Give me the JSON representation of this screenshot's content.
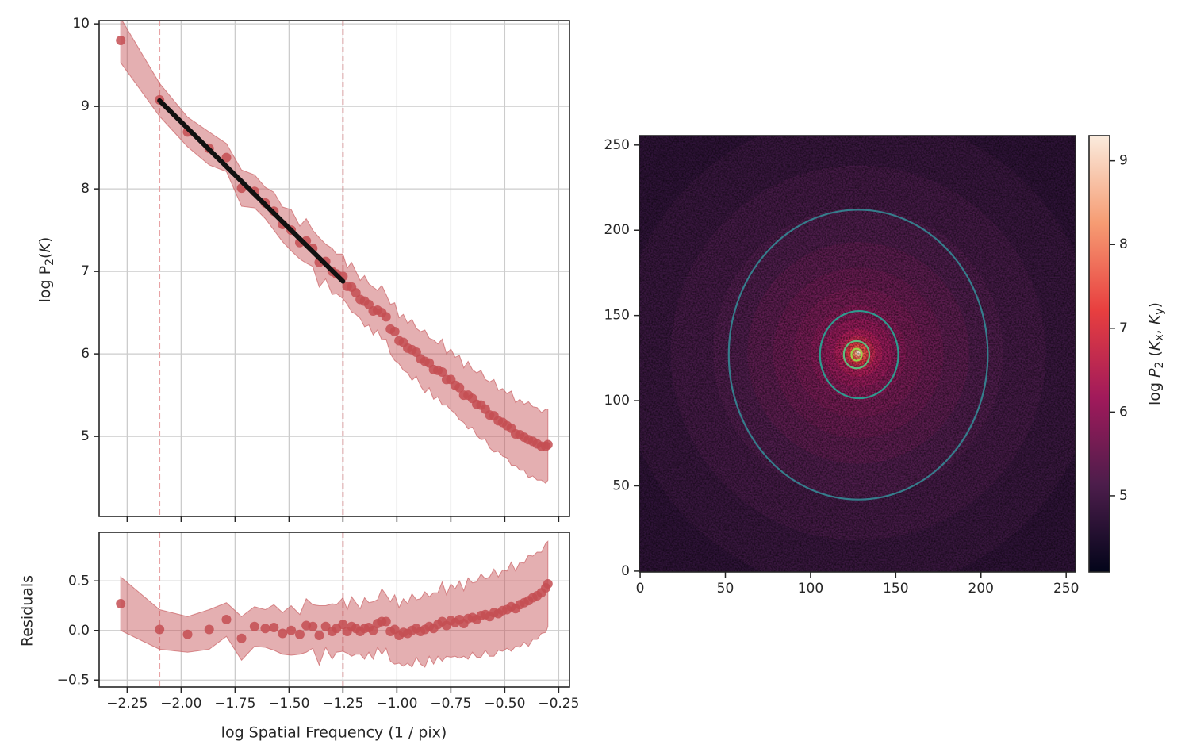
{
  "chart_data": [
    {
      "type": "scatter",
      "ylabel": [
        "log P",
        "2",
        "(",
        "K",
        ")"
      ],
      "xlim": [
        -2.38,
        -0.2
      ],
      "ylim": [
        4.03,
        10.04
      ],
      "xticks": [
        -2.25,
        -2,
        -1.75,
        -1.5,
        -1.25,
        -1,
        -0.75,
        -0.5,
        -0.25
      ],
      "show_xtick_labels": false,
      "yticks": [
        5,
        6,
        7,
        8,
        9,
        10
      ],
      "grid": true,
      "vlines": [
        {
          "x": -2.1,
          "color": "#e8a3a5"
        },
        {
          "x": -1.25,
          "color": "#cf8a8c"
        }
      ],
      "series": [
        {
          "color": "#c44e52",
          "x": [
            -2.28,
            -2.1,
            -1.97,
            -1.87,
            -1.79,
            -1.72,
            -1.66,
            -1.61,
            -1.57,
            -1.53,
            -1.49,
            -1.45,
            -1.42,
            -1.39,
            -1.36,
            -1.33,
            -1.3,
            -1.28,
            -1.25,
            -1.23,
            -1.21,
            -1.19,
            -1.17,
            -1.15,
            -1.13,
            -1.11,
            -1.09,
            -1.07,
            -1.05,
            -1.03,
            -1.01,
            -0.99,
            -0.97,
            -0.95,
            -0.93,
            -0.91,
            -0.89,
            -0.87,
            -0.85,
            -0.83,
            -0.81,
            -0.79,
            -0.77,
            -0.75,
            -0.73,
            -0.71,
            -0.69,
            -0.67,
            -0.65,
            -0.63,
            -0.61,
            -0.59,
            -0.57,
            -0.55,
            -0.53,
            -0.51,
            -0.49,
            -0.47,
            -0.45,
            -0.43,
            -0.41,
            -0.39,
            -0.37,
            -0.35,
            -0.33,
            -0.31,
            -0.3
          ],
          "values": [
            9.8,
            9.08,
            8.69,
            8.49,
            8.38,
            8.01,
            7.97,
            7.83,
            7.73,
            7.57,
            7.5,
            7.35,
            7.37,
            7.28,
            7.11,
            7.12,
            7.0,
            6.97,
            6.94,
            6.82,
            6.81,
            6.74,
            6.66,
            6.64,
            6.6,
            6.52,
            6.53,
            6.5,
            6.45,
            6.3,
            6.27,
            6.16,
            6.14,
            6.07,
            6.05,
            6.02,
            5.94,
            5.91,
            5.89,
            5.81,
            5.8,
            5.78,
            5.69,
            5.69,
            5.62,
            5.59,
            5.5,
            5.5,
            5.46,
            5.39,
            5.38,
            5.33,
            5.26,
            5.25,
            5.19,
            5.17,
            5.13,
            5.1,
            5.03,
            5.02,
            4.99,
            4.96,
            4.94,
            4.91,
            4.88,
            4.88,
            4.9
          ],
          "errors": [
            0.27,
            0.2,
            0.18,
            0.2,
            0.17,
            0.22,
            0.2,
            0.19,
            0.23,
            0.21,
            0.25,
            0.2,
            0.27,
            0.22,
            0.3,
            0.21,
            0.28,
            0.24,
            0.27,
            0.22,
            0.3,
            0.26,
            0.23,
            0.31,
            0.25,
            0.29,
            0.24,
            0.33,
            0.27,
            0.3,
            0.35,
            0.28,
            0.34,
            0.3,
            0.37,
            0.29,
            0.33,
            0.38,
            0.3,
            0.36,
            0.32,
            0.4,
            0.31,
            0.37,
            0.34,
            0.39,
            0.33,
            0.41,
            0.35,
            0.38,
            0.42,
            0.36,
            0.4,
            0.44,
            0.37,
            0.41,
            0.39,
            0.45,
            0.38,
            0.43,
            0.4,
            0.46,
            0.42,
            0.44,
            0.41,
            0.45,
            0.43
          ]
        },
        {
          "type": "line",
          "color": "#111111",
          "x": [
            -2.1,
            -1.25
          ],
          "values": [
            9.07,
            6.88
          ]
        }
      ]
    },
    {
      "type": "scatter",
      "ylabel": "Residuals",
      "xlabel": "log Spatial Frequency (1 / pix)",
      "xlim": [
        -2.38,
        -0.2
      ],
      "ylim": [
        -0.57,
        0.99
      ],
      "xticks": [
        {
          "value": -2.25,
          "label": "−2.25"
        },
        {
          "value": -2,
          "label": "−2.00"
        },
        {
          "value": -1.75,
          "label": "−1.75"
        },
        {
          "value": -1.5,
          "label": "−1.50"
        },
        {
          "value": -1.25,
          "label": "−1.25"
        },
        {
          "value": -1,
          "label": "−1.00"
        },
        {
          "value": -0.75,
          "label": "−0.75"
        },
        {
          "value": -0.5,
          "label": "−0.50"
        },
        {
          "value": -0.25,
          "label": "−0.25"
        }
      ],
      "yticks": [
        {
          "value": -0.5,
          "label": "−0.5"
        },
        {
          "value": 0,
          "label": "0.0"
        },
        0.5
      ],
      "grid": true,
      "vlines": [
        {
          "x": -2.1,
          "color": "#e8a3a5"
        },
        {
          "x": -1.25,
          "color": "#cf8a8c"
        }
      ],
      "series": [
        {
          "color": "#c44e52",
          "x": [
            -2.28,
            -2.1,
            -1.97,
            -1.87,
            -1.79,
            -1.72,
            -1.66,
            -1.61,
            -1.57,
            -1.53,
            -1.49,
            -1.45,
            -1.42,
            -1.39,
            -1.36,
            -1.33,
            -1.3,
            -1.28,
            -1.25,
            -1.23,
            -1.21,
            -1.19,
            -1.17,
            -1.15,
            -1.13,
            -1.11,
            -1.09,
            -1.07,
            -1.05,
            -1.03,
            -1.01,
            -0.99,
            -0.97,
            -0.95,
            -0.93,
            -0.91,
            -0.89,
            -0.87,
            -0.85,
            -0.83,
            -0.81,
            -0.79,
            -0.77,
            -0.75,
            -0.73,
            -0.71,
            -0.69,
            -0.67,
            -0.65,
            -0.63,
            -0.61,
            -0.59,
            -0.57,
            -0.55,
            -0.53,
            -0.51,
            -0.49,
            -0.47,
            -0.45,
            -0.43,
            -0.41,
            -0.39,
            -0.37,
            -0.35,
            -0.33,
            -0.31,
            -0.3
          ],
          "values": [
            0.27,
            0.01,
            -0.04,
            0.01,
            0.11,
            -0.08,
            0.04,
            0.02,
            0.03,
            -0.03,
            0,
            -0.04,
            0.05,
            0.04,
            -0.05,
            0.04,
            -0.01,
            0.02,
            0.06,
            -0.01,
            0.04,
            0.02,
            -0.01,
            0.02,
            0.03,
            0,
            0.07,
            0.09,
            0.09,
            -0.01,
            0.01,
            -0.05,
            -0.02,
            -0.03,
            0,
            0.02,
            -0.01,
            0.01,
            0.04,
            0.02,
            0.06,
            0.09,
            0.05,
            0.1,
            0.08,
            0.11,
            0.07,
            0.12,
            0.13,
            0.11,
            0.15,
            0.16,
            0.14,
            0.18,
            0.17,
            0.2,
            0.21,
            0.24,
            0.22,
            0.26,
            0.28,
            0.3,
            0.33,
            0.35,
            0.38,
            0.43,
            0.47
          ],
          "errors": [
            0.27,
            0.2,
            0.18,
            0.2,
            0.17,
            0.22,
            0.2,
            0.19,
            0.23,
            0.21,
            0.25,
            0.2,
            0.27,
            0.22,
            0.3,
            0.21,
            0.28,
            0.24,
            0.27,
            0.22,
            0.3,
            0.26,
            0.23,
            0.31,
            0.25,
            0.29,
            0.24,
            0.33,
            0.27,
            0.3,
            0.35,
            0.28,
            0.34,
            0.3,
            0.37,
            0.29,
            0.33,
            0.38,
            0.3,
            0.36,
            0.32,
            0.4,
            0.31,
            0.37,
            0.34,
            0.39,
            0.33,
            0.41,
            0.35,
            0.38,
            0.42,
            0.36,
            0.4,
            0.44,
            0.37,
            0.41,
            0.39,
            0.45,
            0.38,
            0.43,
            0.4,
            0.46,
            0.42,
            0.44,
            0.41,
            0.45,
            0.43
          ]
        }
      ]
    },
    {
      "type": "heatmap",
      "xlim": [
        -0.5,
        255.5
      ],
      "ylim": [
        -0.5,
        255.5
      ],
      "xticks": [
        0,
        50,
        100,
        150,
        200,
        250
      ],
      "yticks": [
        0,
        50,
        100,
        150,
        200,
        250
      ],
      "center": [
        128,
        128
      ],
      "radii": [
        190,
        140,
        110,
        85,
        65,
        50,
        38,
        28,
        20,
        14,
        10,
        7,
        5,
        3,
        2,
        1
      ],
      "values": [
        4.7,
        4.85,
        5.0,
        5.15,
        5.3,
        5.45,
        5.6,
        5.8,
        6.0,
        6.3,
        6.6,
        7.0,
        7.4,
        7.9,
        8.5,
        9.2
      ],
      "colormap": [
        "#03051a",
        "#4c1d4b",
        "#a11a5b",
        "#e83f3f",
        "#f69c73",
        "#faebdd"
      ],
      "clim": [
        4.09,
        9.3
      ],
      "colorbar_ticks": [
        5,
        6,
        7,
        8,
        9
      ],
      "colorbar_label": [
        "log ",
        "P",
        "2",
        " (",
        "K",
        "x",
        ", ",
        "K",
        "y",
        ")"
      ],
      "contours": [
        {
          "cx": 128,
          "cy": 127,
          "rx": 76,
          "ry": 85,
          "color": "#367d8c"
        },
        {
          "cx": 128.5,
          "cy": 127,
          "rx": 23,
          "ry": 25.6,
          "color": "#2f9a8e"
        },
        {
          "cx": 127,
          "cy": 127,
          "rx": 7.5,
          "ry": 8,
          "color": "#5dbd7e"
        },
        {
          "cx": 127,
          "cy": 127,
          "rx": 3,
          "ry": 3.5,
          "color": "#9ad54a"
        }
      ]
    }
  ]
}
